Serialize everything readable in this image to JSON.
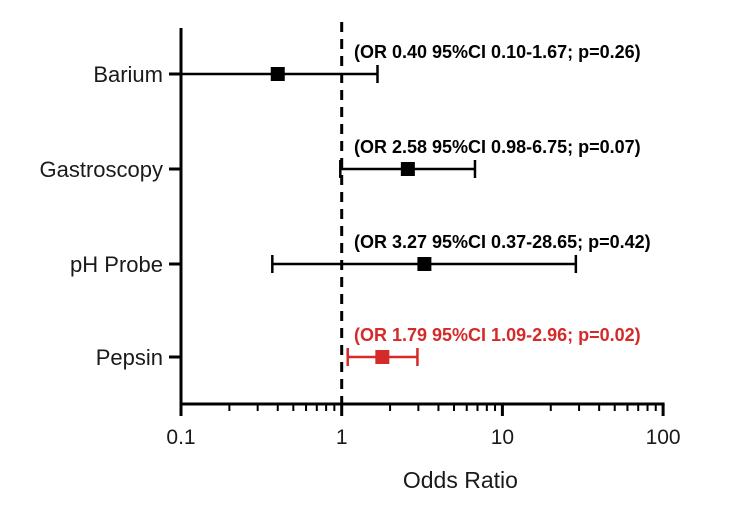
{
  "chart_data": {
    "type": "scatter",
    "subtype": "forest-plot",
    "xscale": "log",
    "xlim": [
      0.1,
      100
    ],
    "xlabel": "Odds Ratio",
    "ylabel": "",
    "title": "",
    "xticks": [
      0.1,
      1,
      10,
      100
    ],
    "xtick_labels": [
      "0.1",
      "1",
      "10",
      "100"
    ],
    "reference_line": 1,
    "grid": false,
    "legend": "none",
    "rows": [
      {
        "label": "Barium",
        "or": 0.4,
        "ci_low": 0.1,
        "ci_high": 1.67,
        "annotation": "(OR 0.40 95%CI 0.10-1.67; p=0.26)",
        "color": "#000000"
      },
      {
        "label": "Gastroscopy",
        "or": 2.58,
        "ci_low": 0.98,
        "ci_high": 6.75,
        "annotation": "(OR 2.58 95%CI 0.98-6.75; p=0.07)",
        "color": "#000000"
      },
      {
        "label": "pH Probe",
        "or": 3.27,
        "ci_low": 0.37,
        "ci_high": 28.65,
        "annotation": "(OR 3.27 95%CI 0.37-28.65; p=0.42)",
        "color": "#000000"
      },
      {
        "label": "Pepsin",
        "or": 1.79,
        "ci_low": 1.09,
        "ci_high": 2.96,
        "annotation": "(OR 1.79 95%CI 1.09-2.96; p=0.02)",
        "color": "#d42a2a"
      }
    ]
  }
}
